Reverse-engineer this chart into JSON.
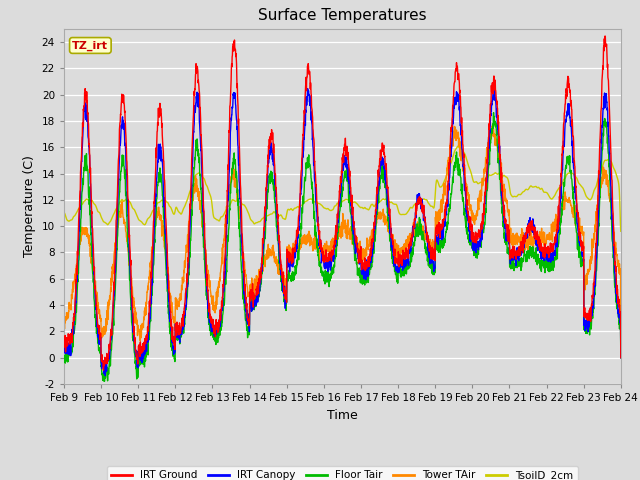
{
  "title": "Surface Temperatures",
  "xlabel": "Time",
  "ylabel": "Temperature (C)",
  "ylim": [
    -2,
    25
  ],
  "yticks": [
    -2,
    0,
    2,
    4,
    6,
    8,
    10,
    12,
    14,
    16,
    18,
    20,
    22,
    24
  ],
  "x_labels": [
    "Feb 9",
    "Feb 10",
    "Feb 11",
    "Feb 12",
    "Feb 13",
    "Feb 14",
    "Feb 15",
    "Feb 16",
    "Feb 17",
    "Feb 18",
    "Feb 19",
    "Feb 20",
    "Feb 21",
    "Feb 22",
    "Feb 23",
    "Feb 24"
  ],
  "legend_entries": [
    "IRT Ground",
    "IRT Canopy",
    "Floor Tair",
    "Tower TAir",
    "TsoilD_2cm"
  ],
  "series_colors": [
    "#ff0000",
    "#0000ff",
    "#00bb00",
    "#ff8800",
    "#cccc00"
  ],
  "annotation_text": "TZ_irt",
  "annotation_color": "#cc0000",
  "annotation_bg": "#ffffcc",
  "background_color": "#dcdcdc",
  "title_fontsize": 11,
  "label_fontsize": 9,
  "tick_fontsize": 7.5,
  "linewidth": 1.0
}
